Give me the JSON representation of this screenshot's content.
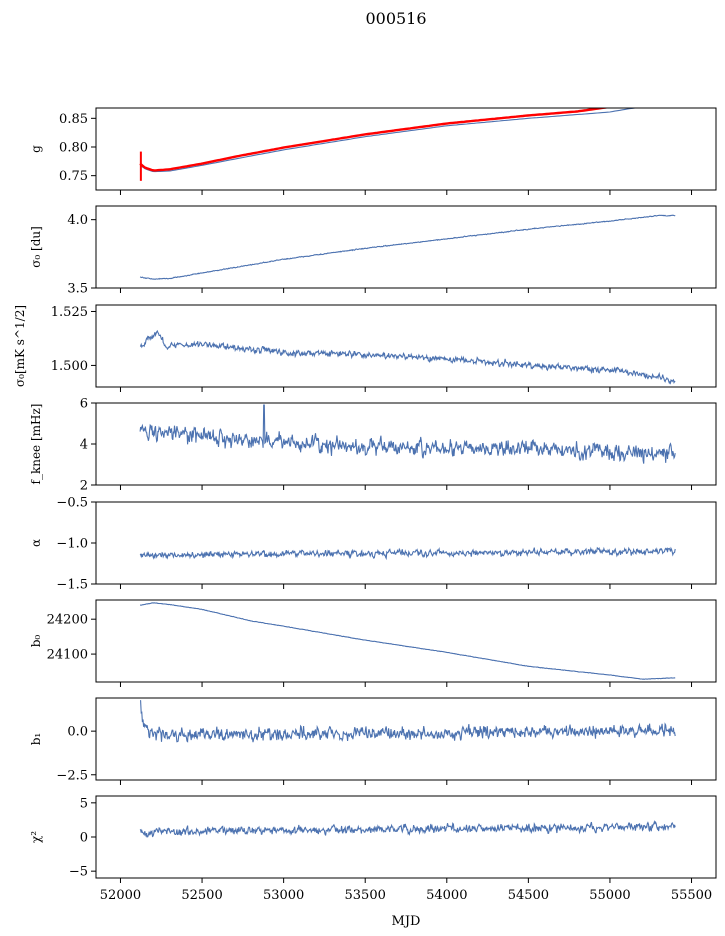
{
  "figure": {
    "title": "000516",
    "xlabel": "MJD"
  },
  "chart_data": [
    {
      "type": "line",
      "ylabel": "g",
      "ylim": [
        0.725,
        0.868
      ],
      "yticks": [
        0.75,
        0.8,
        0.85
      ],
      "ytick_labels": [
        "0.75",
        "0.80",
        "0.85"
      ],
      "xlim": [
        51850,
        55650
      ],
      "series": [
        {
          "color": "#4c72b0",
          "values": [
            [
              52120,
              0.768
            ],
            [
              52150,
              0.762
            ],
            [
              52200,
              0.757
            ],
            [
              52300,
              0.758
            ],
            [
              52500,
              0.768
            ],
            [
              52700,
              0.779
            ],
            [
              53000,
              0.795
            ],
            [
              53500,
              0.818
            ],
            [
              54000,
              0.837
            ],
            [
              54500,
              0.85
            ],
            [
              55000,
              0.861
            ],
            [
              55100,
              0.866
            ],
            [
              55200,
              0.87
            ]
          ]
        },
        {
          "color": "#ff0000",
          "values": [
            [
              52120,
              0.771
            ],
            [
              52150,
              0.764
            ],
            [
              52200,
              0.759
            ],
            [
              52300,
              0.761
            ],
            [
              52500,
              0.771
            ],
            [
              52700,
              0.783
            ],
            [
              53000,
              0.799
            ],
            [
              53500,
              0.822
            ],
            [
              54000,
              0.841
            ],
            [
              54500,
              0.855
            ],
            [
              54800,
              0.862
            ],
            [
              55000,
              0.87
            ]
          ]
        }
      ],
      "annotations": [
        {
          "type": "error_bar",
          "color": "#ff0000",
          "x": 52125,
          "y": 0.766,
          "low": 0.741,
          "high": 0.792
        }
      ]
    },
    {
      "type": "line",
      "ylabel": "σ₀ [du]",
      "ylim": [
        3.5,
        4.1
      ],
      "yticks": [
        3.5,
        4.0
      ],
      "ytick_labels": [
        "3.5",
        "4.0"
      ],
      "xlim": [
        51850,
        55650
      ],
      "series": [
        {
          "color": "#4c72b0",
          "noise": 0.004,
          "values": [
            [
              52120,
              3.58
            ],
            [
              52200,
              3.565
            ],
            [
              52300,
              3.57
            ],
            [
              52500,
              3.61
            ],
            [
              52800,
              3.67
            ],
            [
              53000,
              3.71
            ],
            [
              53500,
              3.79
            ],
            [
              54000,
              3.86
            ],
            [
              54500,
              3.93
            ],
            [
              55000,
              3.99
            ],
            [
              55300,
              4.03
            ],
            [
              55400,
              4.03
            ]
          ]
        }
      ]
    },
    {
      "type": "line",
      "ylabel": "σ₀[mK s^1/2]",
      "ylim": [
        1.49,
        1.528
      ],
      "yticks": [
        1.5,
        1.525
      ],
      "ytick_labels": [
        "1.500",
        "1.525"
      ],
      "xlim": [
        51850,
        55650
      ],
      "series": [
        {
          "color": "#4c72b0",
          "noise": 0.0018,
          "values": [
            [
              52120,
              1.509
            ],
            [
              52180,
              1.513
            ],
            [
              52230,
              1.515
            ],
            [
              52280,
              1.509
            ],
            [
              52500,
              1.51
            ],
            [
              53000,
              1.506
            ],
            [
              53500,
              1.505
            ],
            [
              54000,
              1.503
            ],
            [
              54500,
              1.5
            ],
            [
              55000,
              1.498
            ],
            [
              55200,
              1.496
            ],
            [
              55400,
              1.493
            ]
          ]
        }
      ]
    },
    {
      "type": "line",
      "ylabel": "f_knee [mHz]",
      "ylim": [
        2,
        6
      ],
      "yticks": [
        2,
        4,
        6
      ],
      "ytick_labels": [
        "2",
        "4",
        "6"
      ],
      "xlim": [
        51850,
        55650
      ],
      "series": [
        {
          "color": "#4c72b0",
          "noise": 0.5,
          "values": [
            [
              52120,
              4.7
            ],
            [
              52400,
              4.4
            ],
            [
              53000,
              4.1
            ],
            [
              53500,
              3.9
            ],
            [
              54000,
              3.8
            ],
            [
              54500,
              3.8
            ],
            [
              55000,
              3.6
            ],
            [
              55400,
              3.5
            ]
          ]
        }
      ],
      "annotations": [
        {
          "type": "spike",
          "x": 52880,
          "y": 5.9
        }
      ]
    },
    {
      "type": "line",
      "ylabel": "α",
      "ylim": [
        -1.5,
        -0.5
      ],
      "yticks": [
        -1.5,
        -1.0,
        -0.5
      ],
      "ytick_labels": [
        "−1.5",
        "−1.0",
        "−0.5"
      ],
      "xlim": [
        51850,
        55650
      ],
      "series": [
        {
          "color": "#4c72b0",
          "noise": 0.05,
          "values": [
            [
              52120,
              -1.15
            ],
            [
              53000,
              -1.13
            ],
            [
              54000,
              -1.12
            ],
            [
              55000,
              -1.11
            ],
            [
              55400,
              -1.1
            ]
          ]
        }
      ]
    },
    {
      "type": "line",
      "ylabel": "b₀",
      "ylim": [
        24020,
        24255
      ],
      "yticks": [
        24100,
        24200
      ],
      "ytick_labels": [
        "24100",
        "24200"
      ],
      "xlim": [
        51850,
        55650
      ],
      "series": [
        {
          "color": "#4c72b0",
          "noise": 0.8,
          "values": [
            [
              52120,
              24240
            ],
            [
              52200,
              24247
            ],
            [
              52300,
              24242
            ],
            [
              52500,
              24228
            ],
            [
              52800,
              24195
            ],
            [
              53000,
              24180
            ],
            [
              53500,
              24140
            ],
            [
              54000,
              24105
            ],
            [
              54500,
              24065
            ],
            [
              55000,
              24040
            ],
            [
              55200,
              24028
            ],
            [
              55400,
              24032
            ]
          ]
        }
      ]
    },
    {
      "type": "line",
      "ylabel": "b₁",
      "ylim": [
        -2.8,
        1.9
      ],
      "yticks": [
        -2.5,
        0.0
      ],
      "ytick_labels": [
        "−2.5",
        "0.0"
      ],
      "xlim": [
        51850,
        55650
      ],
      "series": [
        {
          "color": "#4c72b0",
          "noise": 0.45,
          "values": [
            [
              52120,
              1.8
            ],
            [
              52140,
              0.6
            ],
            [
              52180,
              0.0
            ],
            [
              52300,
              -0.25
            ],
            [
              53000,
              -0.15
            ],
            [
              54000,
              -0.1
            ],
            [
              55000,
              0.0
            ],
            [
              55400,
              0.1
            ]
          ]
        }
      ]
    },
    {
      "type": "line",
      "ylabel": "χ²",
      "ylim": [
        -6,
        6
      ],
      "yticks": [
        -5,
        0,
        5
      ],
      "ytick_labels": [
        "−5",
        "0",
        "5"
      ],
      "xlim": [
        51850,
        55650
      ],
      "xticks": [
        52000,
        52500,
        53000,
        53500,
        54000,
        54500,
        55000,
        55500
      ],
      "xtick_labels": [
        "52000",
        "52500",
        "53000",
        "53500",
        "54000",
        "54500",
        "55000",
        "55500"
      ],
      "series": [
        {
          "color": "#4c72b0",
          "noise": 0.75,
          "values": [
            [
              52120,
              0.8
            ],
            [
              53000,
              1.0
            ],
            [
              54000,
              1.2
            ],
            [
              55000,
              1.4
            ],
            [
              55400,
              1.5
            ]
          ]
        }
      ]
    }
  ]
}
